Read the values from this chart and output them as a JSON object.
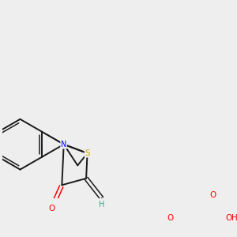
{
  "background_color": "#eeeeee",
  "bond_color": "#1a1a1a",
  "N_color": "#0000ff",
  "S_color": "#ccaa00",
  "O_color": "#ff0000",
  "H_color": "#2aaa88",
  "figsize": [
    3.0,
    3.0
  ],
  "dpi": 100,
  "xlim": [
    -1.5,
    6.5
  ],
  "ylim": [
    -2.5,
    3.5
  ]
}
